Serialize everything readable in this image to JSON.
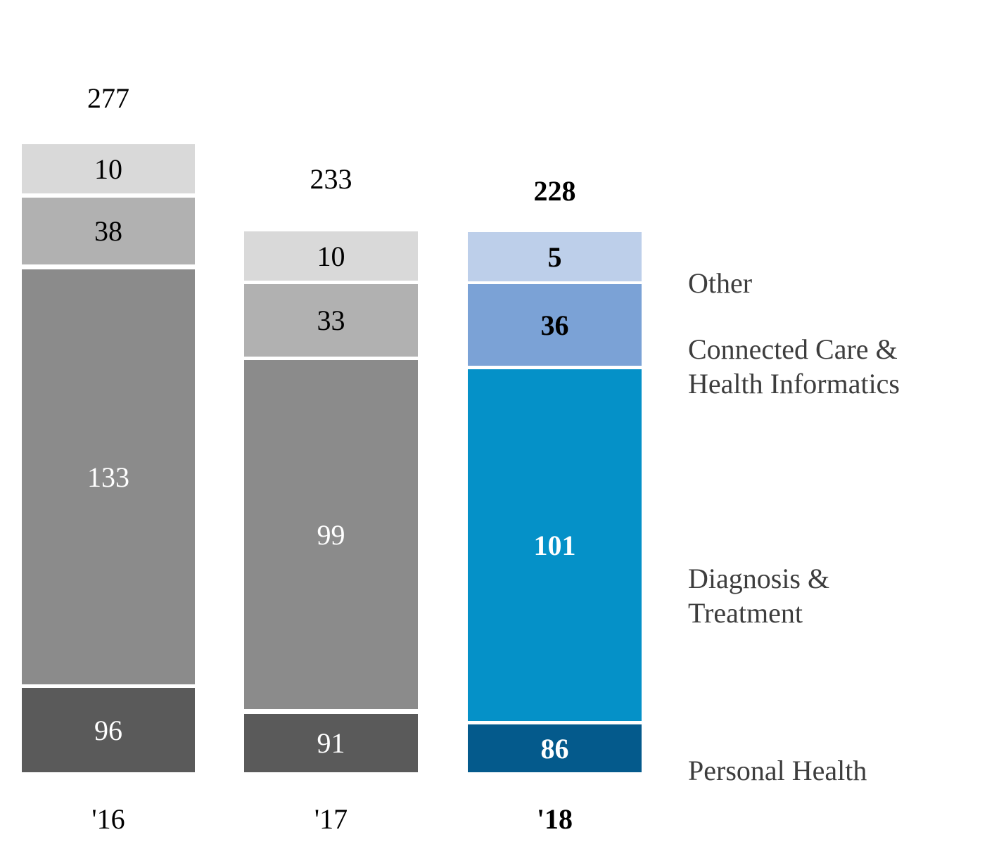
{
  "chart_data": {
    "type": "bar",
    "variant": "stacked-column",
    "title": "",
    "categories": [
      "'16",
      "'17",
      "'18"
    ],
    "category_emphasis": [
      false,
      false,
      true
    ],
    "totals": [
      "277",
      "233",
      "228"
    ],
    "series": [
      {
        "name": "Other",
        "values": [
          "10",
          "10",
          "5"
        ]
      },
      {
        "name": "Connected Care & Health Informatics",
        "values": [
          "38",
          "33",
          "36"
        ]
      },
      {
        "name": "Diagnosis & Treatment",
        "values": [
          "133",
          "99",
          "101"
        ]
      },
      {
        "name": "Personal Health",
        "values": [
          "96",
          "91",
          "86"
        ]
      }
    ],
    "stack_order_top_to_bottom": [
      "Other",
      "Connected Care & Health Informatics",
      "Diagnosis & Treatment",
      "Personal Health"
    ],
    "legend": {
      "position": "right",
      "entries": [
        {
          "lines": [
            "Other"
          ]
        },
        {
          "lines": [
            "Connected Care &",
            "Health Informatics"
          ]
        },
        {
          "lines": [
            "Diagnosis &",
            "Treatment"
          ]
        },
        {
          "lines": [
            "Personal Health"
          ]
        }
      ]
    },
    "colors": {
      "gray_columns": {
        "other": "#d9d9d9",
        "connected_care_health_informatics": "#b1b1b1",
        "diagnosis_treatment": "#8b8b8b",
        "personal_health": "#5a5a5a"
      },
      "blue_column": {
        "other": "#bdcfea",
        "connected_care_health_informatics": "#7ba2d6",
        "diagnosis_treatment": "#0591c8",
        "personal_health": "#045a8c"
      },
      "background": "#ffffff",
      "legend_text": "#3d3d3d",
      "value_text_light_segments": "#000000",
      "value_text_dark_segments": "#ffffff"
    },
    "axes": {
      "x_labels": [
        "'16",
        "'17",
        "'18"
      ],
      "y_axis_visible": false,
      "gridlines": false
    }
  }
}
